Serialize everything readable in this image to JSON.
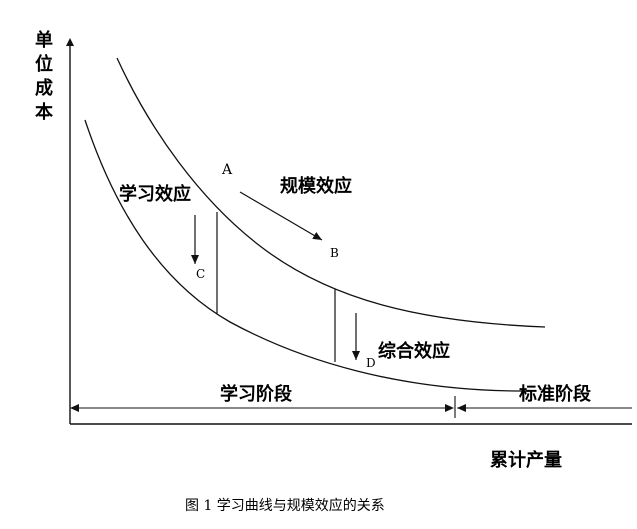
{
  "y_axis_label": "单位成本",
  "x_axis_label": "累计产量",
  "labels": {
    "learning_effect": "学习效应",
    "scale_effect": "规模效应",
    "combined_effect": "综合效应"
  },
  "points": {
    "A": "A",
    "B": "B",
    "C": "C",
    "D": "D"
  },
  "stages": {
    "learning_stage": "学习阶段",
    "standard_stage": "标准阶段"
  },
  "caption": "图 1 学习曲线与规模效应的关系"
}
